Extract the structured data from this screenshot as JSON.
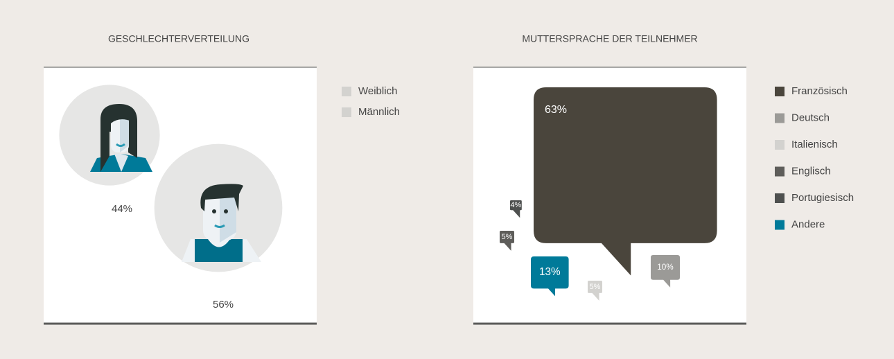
{
  "chart_data": [
    {
      "type": "pictogram",
      "title": "GESCHLECHTERVERTEILUNG",
      "categories": [
        "Weiblich",
        "Männlich"
      ],
      "values": [
        44,
        56
      ],
      "value_labels": [
        "44%",
        "56%"
      ],
      "colors": [
        "#d3d2cf",
        "#d3d2cf"
      ]
    },
    {
      "type": "bubble",
      "title": "MUTTERSPRACHE DER TEILNEHMER",
      "categories": [
        "Französisch",
        "Deutsch",
        "Italienisch",
        "Englisch",
        "Portugiesisch",
        "Andere"
      ],
      "values": [
        63,
        10,
        5,
        5,
        4,
        13
      ],
      "value_labels": [
        "63%",
        "10%",
        "5%",
        "5%",
        "4%",
        "13%"
      ],
      "colors": [
        "#4a453c",
        "#9b9a97",
        "#d3d2cf",
        "#5e5d5a",
        "#4e504f",
        "#007a99"
      ]
    }
  ]
}
